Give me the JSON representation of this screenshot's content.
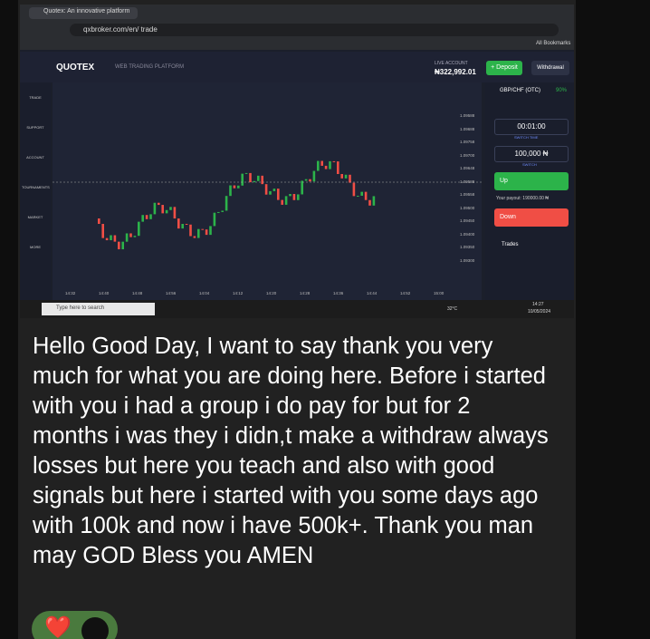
{
  "browser": {
    "tab_title": "Quotex: An innovative platform",
    "url": "qxbroker.com/en/ trade",
    "bookmarks": "All Bookmarks"
  },
  "platform": {
    "logo": "QUOTEX",
    "tagline": "WEB TRADING PLATFORM",
    "account_type": "LIVE ACCOUNT",
    "balance": "₦322,992.01",
    "deposit": "+ Deposit",
    "withdrawal": "Withdrawal",
    "sidebar": [
      "TRADE",
      "SUPPORT",
      "ACCOUNT",
      "TOURNAMENTS",
      "MARKET",
      "MORE"
    ],
    "asset": "GBP/CHF (OTC)",
    "payout_pct": "90%",
    "time": "00:01:00",
    "switch_time": "SWITCH TIME",
    "amount": "100,000 ₦",
    "switch": "SWITCH",
    "up": "Up",
    "down": "Down",
    "payout": "Your payout: 190000.00 ₦",
    "trades": "Trades",
    "price_labels": [
      "1.09588",
      "1.09688",
      "1.09758",
      "1.09700",
      "1.09648",
      "1.09588",
      "1.09558",
      "1.09500",
      "1.09450",
      "1.09400",
      "1.09350",
      "1.09300"
    ],
    "time_labels": [
      "14:32",
      "14:40",
      "14:48",
      "14:56",
      "14:04",
      "14:12",
      "14:20",
      "14:28",
      "14:36",
      "14:44",
      "14:52",
      "15:00"
    ]
  },
  "taskbar": {
    "search": "Type here to search",
    "weather": "32°C",
    "clock": "14:27",
    "date": "10/05/2024"
  },
  "message": {
    "text": "Hello Good Day, I want to say thank you very much for what you are doing here. Before i started with you i had a group i do pay for but for 2 months i was they i didn,t make a withdraw always losses but here you teach and also with good signals but here i started with you some days ago with 100k and now i have 500k+. Thank you man may GOD Bless you AMEN",
    "reaction": "❤️"
  }
}
